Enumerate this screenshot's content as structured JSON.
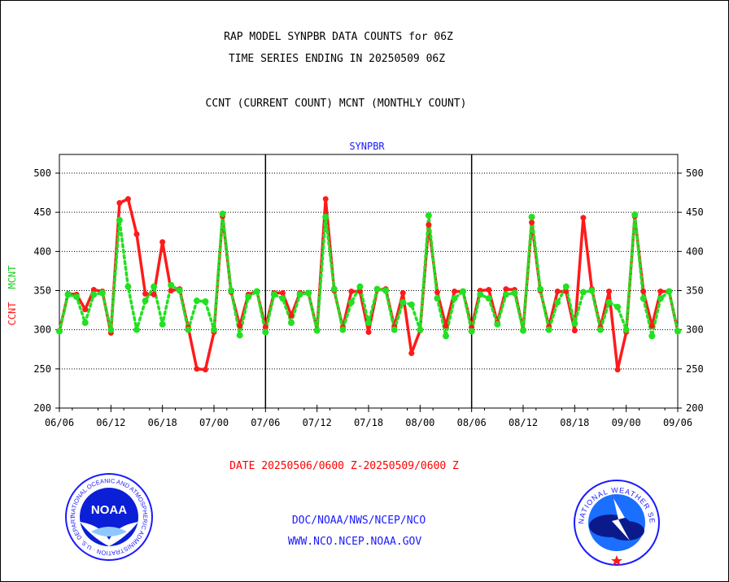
{
  "header": {
    "title_line1": "RAP MODEL SYNPBR DATA COUNTS for 06Z",
    "title_line2": "TIME SERIES ENDING IN 20250509 06Z",
    "subtitle": "CCNT (CURRENT COUNT) MCNT (MONTHLY COUNT)"
  },
  "chart_data": {
    "type": "line",
    "title": "SYNPBR",
    "ylabel_left": [
      "CCNT",
      "MCNT"
    ],
    "ylim": [
      200,
      500
    ],
    "yticks": [
      "200",
      "250",
      "300",
      "350",
      "400",
      "450",
      "500"
    ],
    "xticks": [
      "06/06",
      "06/12",
      "06/18",
      "07/00",
      "07/06",
      "07/12",
      "07/18",
      "08/00",
      "08/06",
      "08/12",
      "08/18",
      "09/00",
      "09/06"
    ],
    "grid": true,
    "colors": {
      "ccnt": "#ff1a1a",
      "mcnt": "#22e022"
    },
    "series": [
      {
        "name": "CCNT",
        "values": [
          298,
          346,
          345,
          326,
          351,
          349,
          296,
          462,
          467,
          422,
          346,
          345,
          412,
          350,
          352,
          303,
          250,
          249,
          297,
          445,
          348,
          305,
          345,
          349,
          303,
          347,
          347,
          318,
          347,
          347,
          300,
          467,
          350,
          303,
          349,
          349,
          297,
          351,
          352,
          304,
          347,
          270,
          299,
          434,
          348,
          305,
          349,
          349,
          303,
          350,
          351,
          309,
          352,
          351,
          300,
          437,
          350,
          304,
          349,
          349,
          299,
          443,
          352,
          303,
          349,
          249,
          297,
          445,
          349,
          305,
          349,
          349,
          298
        ]
      },
      {
        "name": "MCNT",
        "values": [
          298,
          345,
          342,
          309,
          345,
          347,
          300,
          440,
          355,
          300,
          337,
          355,
          307,
          357,
          350,
          300,
          337,
          336,
          300,
          448,
          350,
          293,
          342,
          349,
          297,
          345,
          340,
          309,
          345,
          347,
          299,
          444,
          352,
          300,
          335,
          355,
          309,
          352,
          350,
          300,
          335,
          332,
          300,
          446,
          340,
          292,
          340,
          349,
          298,
          345,
          340,
          307,
          345,
          347,
          299,
          444,
          352,
          300,
          335,
          355,
          308,
          348,
          350,
          300,
          335,
          329,
          300,
          447,
          340,
          292,
          340,
          349,
          298
        ]
      }
    ]
  },
  "footer": {
    "date_range": "DATE 20250506/0600 Z-20250509/0600 Z",
    "org_line": "DOC/NOAA/NWS/NCEP/NCO",
    "url_line": "WWW.NCO.NCEP.NOAA.GOV",
    "noaa_logo_text": "NOAA",
    "noaa_ring_text": "NATIONAL OCEANIC AND ATMOSPHERIC ADMINISTRATION · U.S. DEPARTMENT OF COMMERCE",
    "nws_ring_text": "NATIONAL WEATHER SERVICE"
  }
}
